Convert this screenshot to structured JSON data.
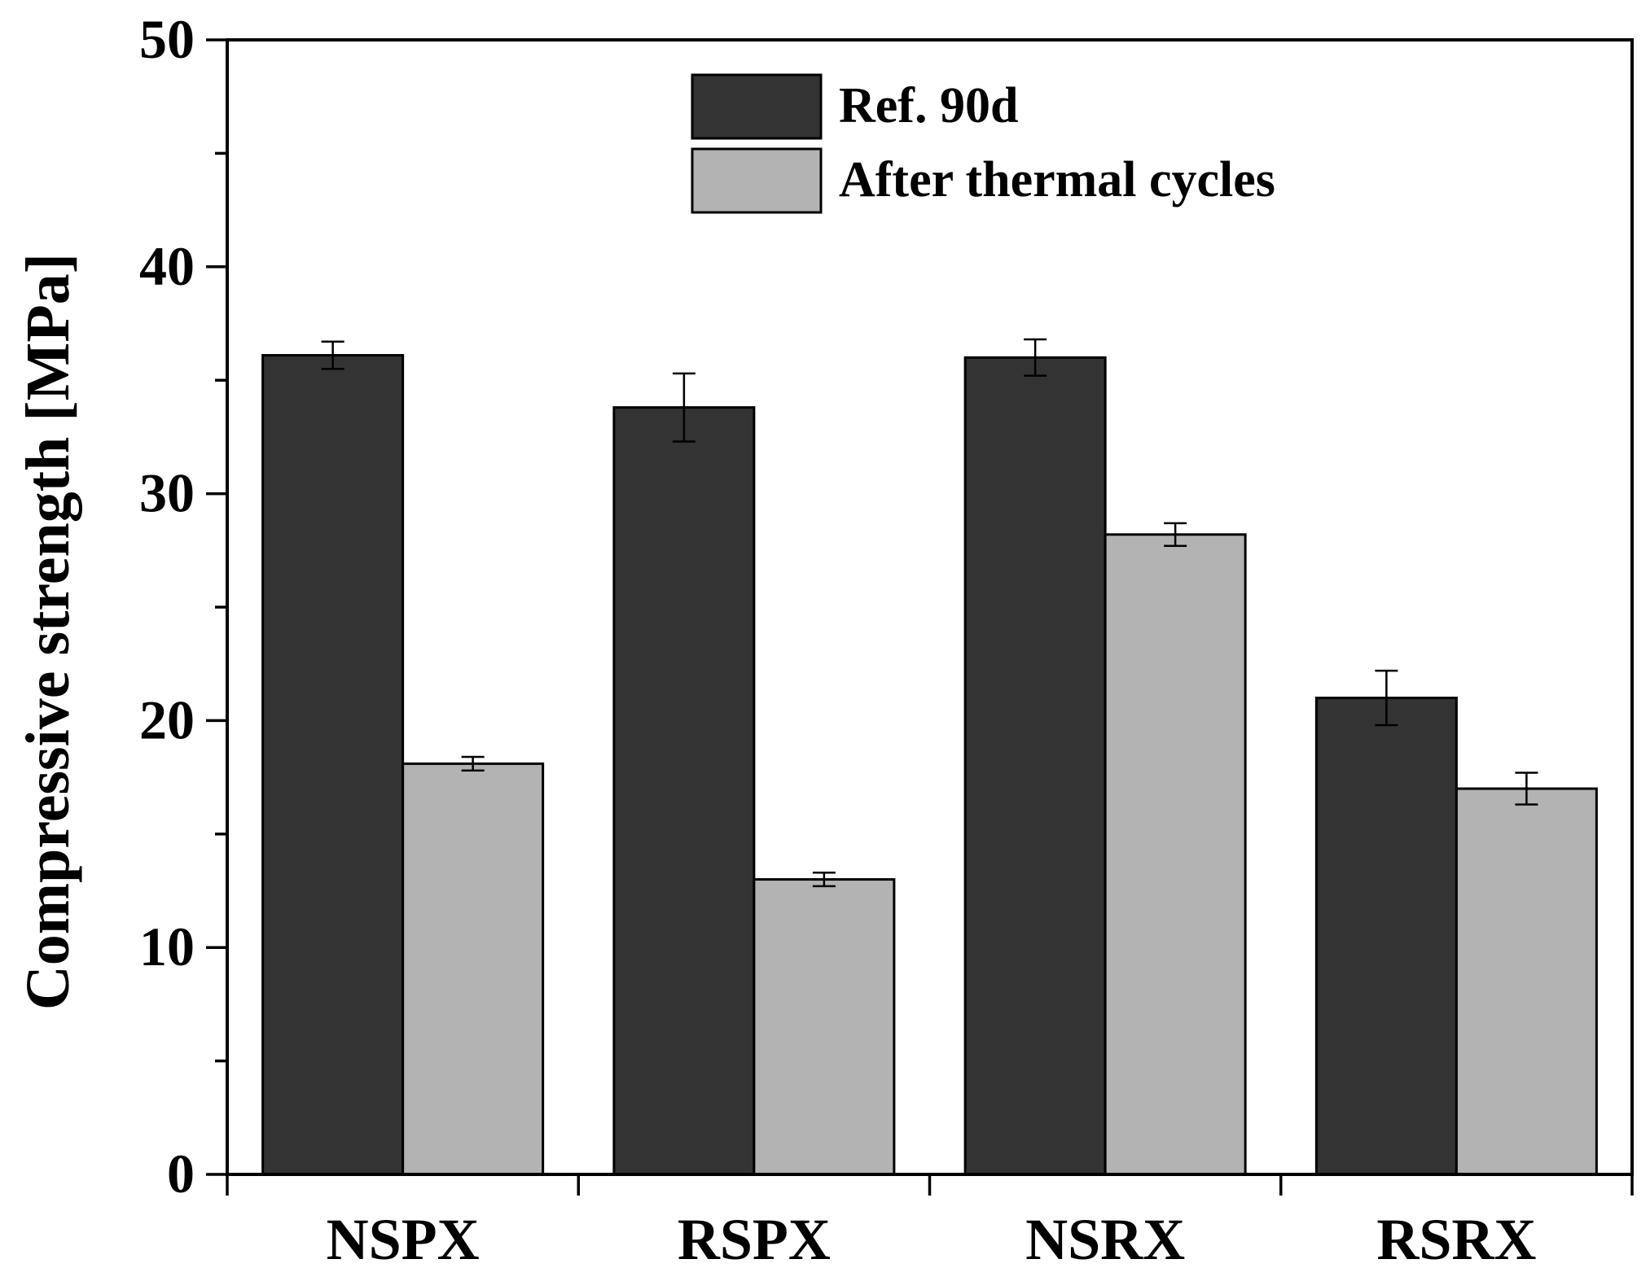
{
  "chart_data": {
    "type": "bar",
    "title": "",
    "xlabel": "",
    "ylabel": "Compressive strength [MPa]",
    "ylim": [
      0,
      50
    ],
    "yticks": [
      0,
      10,
      20,
      30,
      40,
      50
    ],
    "yticks_labels": [
      "0",
      "10",
      "20",
      "30",
      "40",
      "50"
    ],
    "categories": [
      "NSPX",
      "RSPX",
      "NSRX",
      "RSRX"
    ],
    "legend_position": "top-center",
    "grid": false,
    "series": [
      {
        "name": "Ref. 90d",
        "color": "#333333",
        "values": [
          36.1,
          33.8,
          36.0,
          21.0
        ],
        "errors": [
          0.6,
          1.5,
          0.8,
          1.2
        ]
      },
      {
        "name": "After thermal cycles",
        "color": "#b3b3b3",
        "values": [
          18.1,
          13.0,
          28.2,
          17.0
        ],
        "errors": [
          0.3,
          0.3,
          0.5,
          0.7
        ]
      }
    ]
  }
}
